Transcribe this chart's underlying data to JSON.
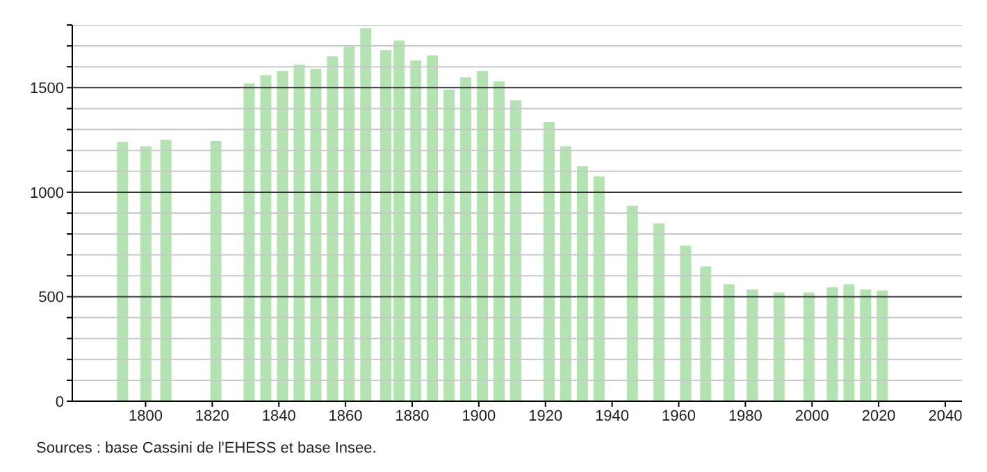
{
  "chart_data": {
    "type": "bar",
    "x": [
      1793,
      1800,
      1806,
      1821,
      1831,
      1836,
      1841,
      1846,
      1851,
      1856,
      1861,
      1866,
      1872,
      1876,
      1881,
      1886,
      1891,
      1896,
      1901,
      1906,
      1911,
      1921,
      1926,
      1931,
      1936,
      1946,
      1954,
      1962,
      1968,
      1975,
      1982,
      1990,
      1999,
      2006,
      2011,
      2016,
      2021
    ],
    "values": [
      1240,
      1220,
      1250,
      1245,
      1520,
      1560,
      1580,
      1610,
      1590,
      1650,
      1695,
      1785,
      1680,
      1725,
      1630,
      1655,
      1490,
      1550,
      1580,
      1530,
      1440,
      1335,
      1220,
      1125,
      1075,
      935,
      850,
      745,
      645,
      560,
      535,
      520,
      520,
      545,
      560,
      535,
      530
    ],
    "color": "#b3e3b0",
    "xlim": [
      1778,
      2045
    ],
    "xticks": [
      1800,
      1820,
      1840,
      1860,
      1880,
      1900,
      1920,
      1940,
      1960,
      1980,
      2000,
      2020,
      2040
    ],
    "ylim": [
      0,
      1800
    ],
    "yticks": [
      0,
      {
        "value": 100,
        "label": null
      },
      {
        "value": 200,
        "label": null
      },
      {
        "value": 300,
        "label": null
      },
      {
        "value": 400,
        "label": null
      },
      500,
      {
        "value": 600,
        "label": null
      },
      {
        "value": 700,
        "label": null
      },
      {
        "value": 800,
        "label": null
      },
      {
        "value": 900,
        "label": null
      },
      1000,
      {
        "value": 1100,
        "label": null
      },
      {
        "value": 1200,
        "label": null
      },
      {
        "value": 1300,
        "label": null
      },
      {
        "value": 1400,
        "label": null
      },
      1500,
      {
        "value": 1600,
        "label": null
      },
      {
        "value": 1700,
        "label": null
      },
      {
        "value": 1800,
        "label": null
      }
    ],
    "grid": "y",
    "annotations": [
      "Sources : base Cassini de l'EHESS et base Insee."
    ]
  }
}
